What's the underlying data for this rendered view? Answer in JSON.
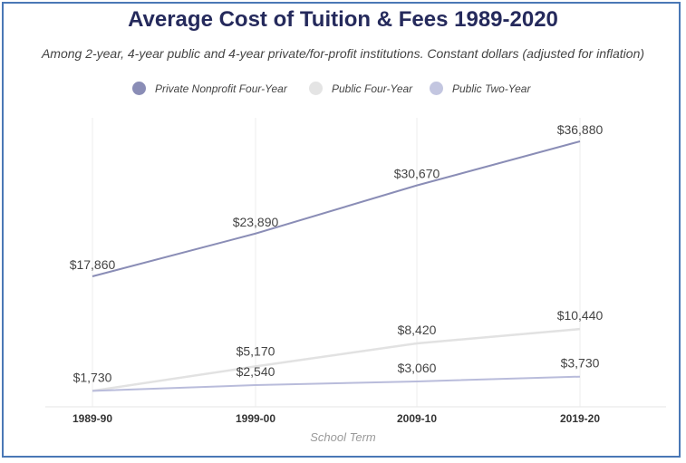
{
  "chart_data": {
    "type": "line",
    "title": "Average Cost of Tuition & Fees 1989-2020",
    "subtitle": "Among 2-year, 4-year public and 4-year private/for-profit institutions. Constant dollars (adjusted for inflation)",
    "xlabel": "School Term",
    "ylabel": "",
    "categories": [
      "1989-90",
      "1999-00",
      "2009-10",
      "2019-20"
    ],
    "ylim": [
      0,
      40000
    ],
    "grid": "vertical",
    "legend_position": "top",
    "series": [
      {
        "name": "Private Nonprofit Four-Year",
        "color": "#8a8db6",
        "values": [
          17860,
          23890,
          30670,
          36880
        ],
        "labels": [
          "$17,860",
          "$23,890",
          "$30,670",
          "$36,880"
        ]
      },
      {
        "name": "Public Four-Year",
        "color": "#e4e4e4",
        "values": [
          1730,
          5170,
          8420,
          10440
        ],
        "labels": [
          "$1,730",
          "$5,170",
          "$8,420",
          "$10,440"
        ]
      },
      {
        "name": "Public Two-Year",
        "color": "#c3c6e0",
        "values": [
          1730,
          2540,
          3060,
          3730
        ],
        "labels": [
          "",
          "$2,540",
          "$3,060",
          "$3,730"
        ]
      }
    ]
  }
}
